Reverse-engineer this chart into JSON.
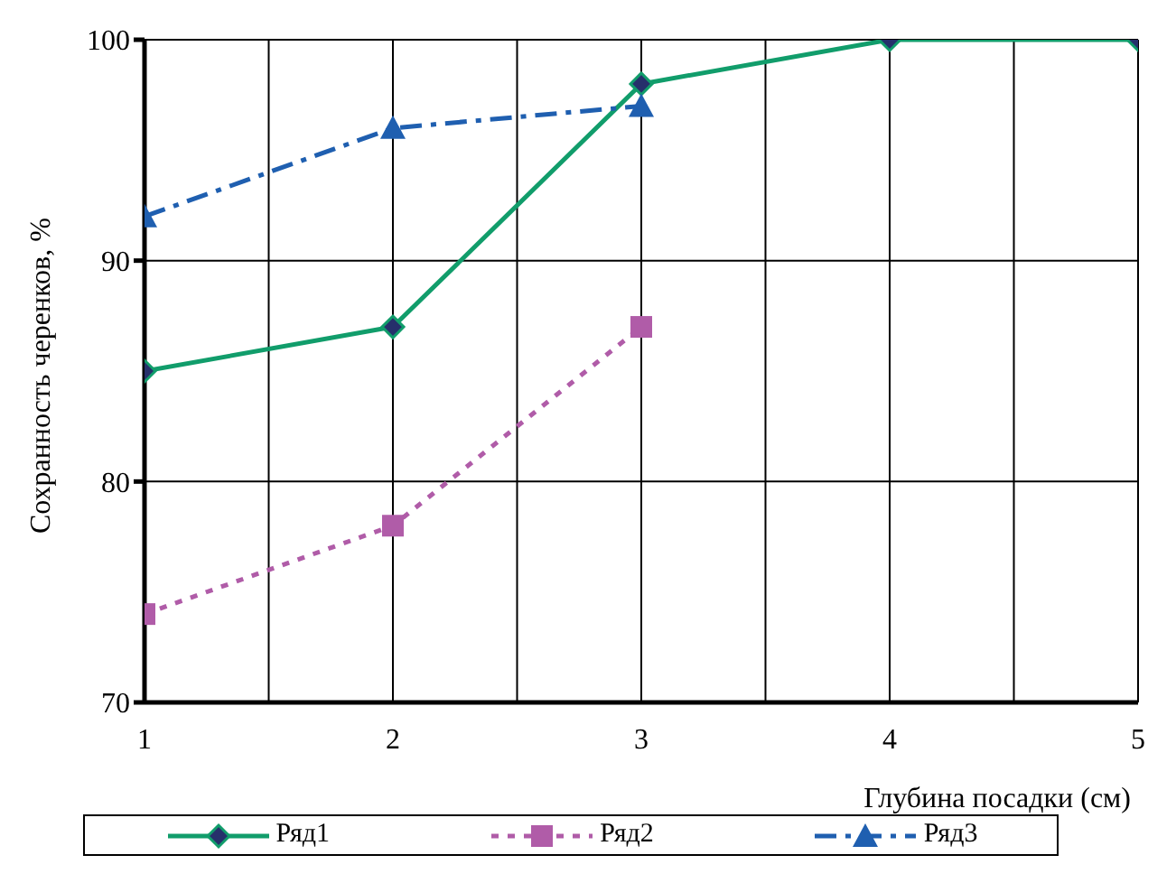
{
  "chart_data": {
    "type": "line",
    "xlabel": "Глубина посадки (см)",
    "ylabel": "Сохранность черенков, %",
    "xlim": [
      1,
      5
    ],
    "xticks": [
      1,
      {
        "value": 1.5,
        "label": null
      },
      2,
      {
        "value": 2.5,
        "label": null
      },
      3,
      {
        "value": 3.5,
        "label": null
      },
      4,
      {
        "value": 4.5,
        "label": null
      },
      5
    ],
    "ylim": [
      70,
      100
    ],
    "yticks": [
      70,
      80,
      90,
      100
    ],
    "grid": true,
    "legend": "bottom",
    "series": [
      {
        "name": "Ряд1",
        "color": "#119d6b",
        "x": [
          1,
          2,
          3,
          4,
          5
        ],
        "values": [
          85,
          87,
          98,
          100,
          100
        ],
        "marker": "diamond",
        "line_style": "solid"
      },
      {
        "name": "Ряд2",
        "color": "#b05ca8",
        "x": [
          1,
          2,
          3
        ],
        "values": [
          74,
          78,
          87
        ],
        "marker": "square",
        "line_style": "dotted"
      },
      {
        "name": "Ряд3",
        "color": "#1f5fb0",
        "x": [
          1,
          2,
          3
        ],
        "values": [
          92,
          96,
          97
        ],
        "marker": "triangle",
        "line_style": "dashdot"
      }
    ]
  }
}
